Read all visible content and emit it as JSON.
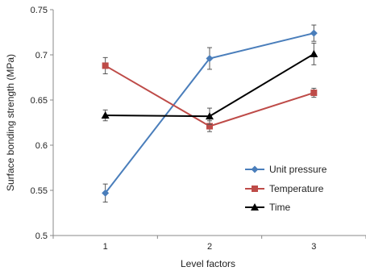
{
  "chart_data": {
    "type": "line",
    "title": "",
    "xlabel": "Level factors",
    "ylabel": "Surface bonding strength (MPa)",
    "x": [
      1,
      2,
      3
    ],
    "x_tick_labels": [
      "1",
      "2",
      "3"
    ],
    "xlim": [
      0.5,
      3.5
    ],
    "ylim": [
      0.5,
      0.75
    ],
    "y_ticks": [
      0.5,
      0.55,
      0.6,
      0.65,
      0.7,
      0.75
    ],
    "y_tick_labels": [
      "0.5",
      "0.55",
      "0.6",
      "0.65",
      "0.7",
      "0.75"
    ],
    "grid": false,
    "legend_position": "bottom-right",
    "series": [
      {
        "name": "Unit pressure",
        "color": "#4a7ebb",
        "marker": "diamond",
        "values": [
          0.547,
          0.696,
          0.724
        ],
        "errors": [
          0.01,
          0.012,
          0.009
        ]
      },
      {
        "name": "Temperature",
        "color": "#be4b48",
        "marker": "square",
        "values": [
          0.688,
          0.621,
          0.658
        ],
        "errors": [
          0.009,
          0.006,
          0.005
        ]
      },
      {
        "name": "Time",
        "color": "#000000",
        "marker": "triangle",
        "values": [
          0.633,
          0.632,
          0.701
        ],
        "errors": [
          0.006,
          0.009,
          0.012
        ]
      }
    ]
  }
}
